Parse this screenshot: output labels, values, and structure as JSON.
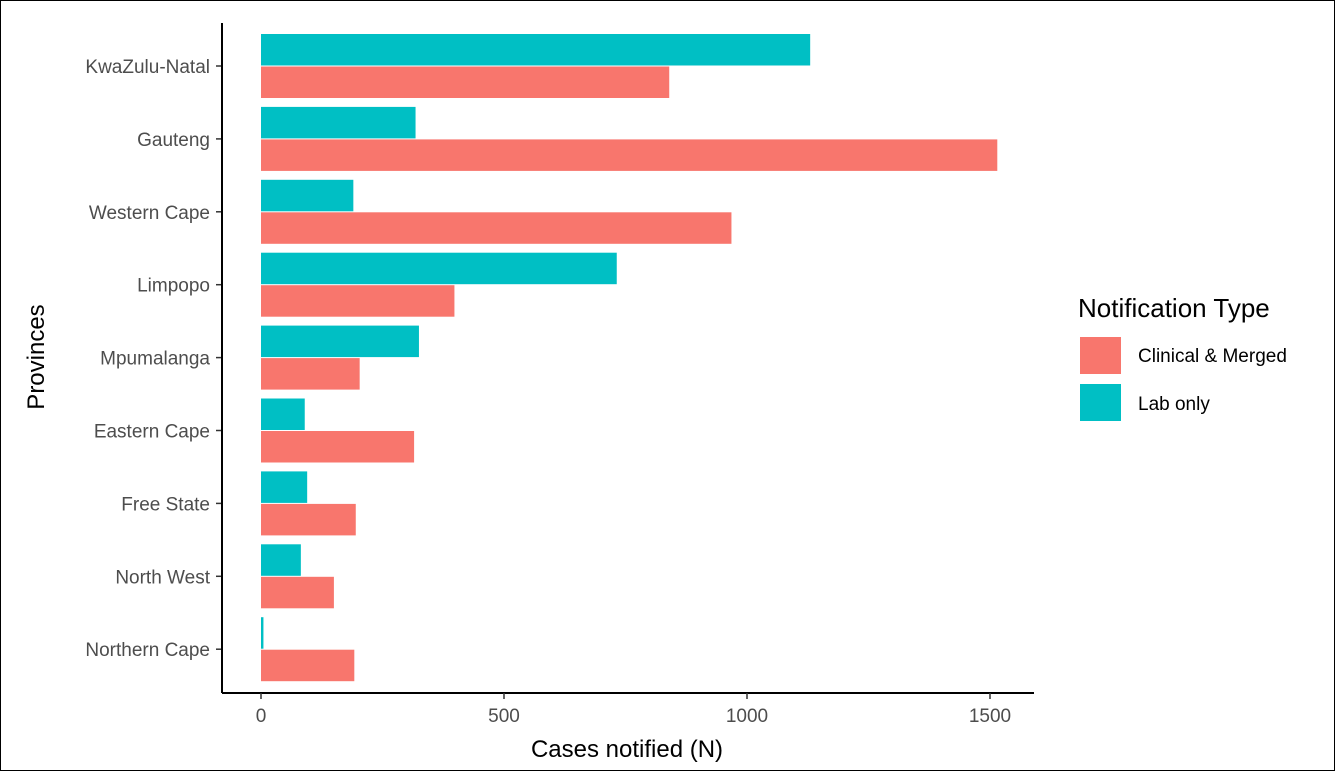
{
  "chart_data": {
    "type": "bar",
    "orientation": "horizontal",
    "title": "",
    "xlabel": "Cases notified (N)",
    "ylabel": "Provinces",
    "xlim": [
      0,
      1550
    ],
    "xticks": [
      0,
      500,
      1000,
      1500
    ],
    "categories": [
      "KwaZulu-Natal",
      "Gauteng",
      "Western Cape",
      "Limpopo",
      "Mpumalanga",
      "Eastern Cape",
      "Free State",
      "North West",
      "Northern Cape"
    ],
    "series": [
      {
        "name": "Clinical & Merged",
        "color": "#F8766D",
        "values": [
          840,
          1515,
          968,
          398,
          203,
          315,
          195,
          150,
          192
        ]
      },
      {
        "name": "Lab only",
        "color": "#00BFC4",
        "values": [
          1130,
          318,
          190,
          732,
          325,
          90,
          95,
          82,
          5
        ]
      }
    ],
    "legend": {
      "title": "Notification Type",
      "position": "right"
    },
    "grid": false
  }
}
